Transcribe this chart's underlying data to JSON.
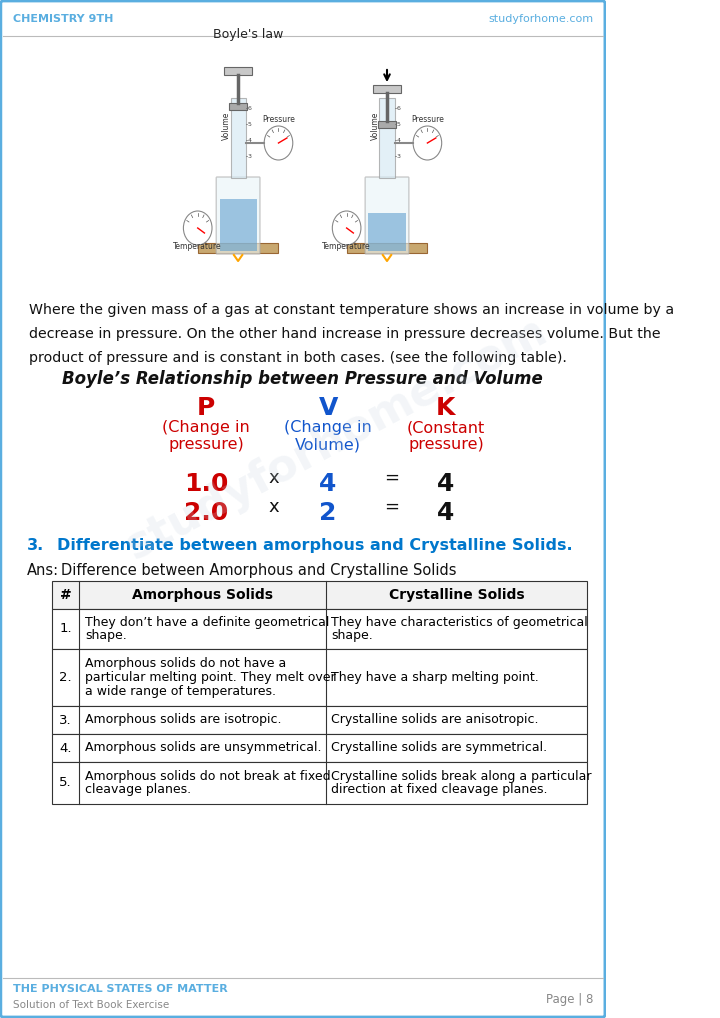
{
  "header_left": "CHEMISTRY 9TH",
  "header_right": "studyforhome.com",
  "header_color": "#5aaee0",
  "footer_left_title": "THE PHYSICAL STATES OF MATTER",
  "footer_left_sub": "Solution of Text Book Exercise",
  "footer_right": "Page | 8",
  "footer_color": "#5aaee0",
  "body_line1": "Where the given mass of a gas at constant temperature shows an increase in volume by a",
  "body_line2": "decrease in pressure. On the other hand increase in pressure decreases volume. But the",
  "body_line3": "product of pressure and is constant in both cases. (see the following table).",
  "boyles_title": "Boyle’s Relationship between Pressure and Volume",
  "col_P": "P",
  "col_V": "V",
  "col_K": "K",
  "col_P_sub1": "(Change in",
  "col_P_sub2": "pressure)",
  "col_V_sub1": "(Change in",
  "col_V_sub2": "Volume)",
  "col_K_sub1": "(Constant",
  "col_K_sub2": "pressure)",
  "row1": [
    "1.0",
    "x",
    "4",
    "=",
    "4"
  ],
  "row2": [
    "2.0",
    "x",
    "2",
    "=",
    "4"
  ],
  "red_color": "#cc0000",
  "blue_color": "#1155cc",
  "black_color": "#111111",
  "question_color": "#0077cc",
  "question_num": "3.",
  "question_text": "Differentiate between amorphous and Crystalline Solids.",
  "ans_label": "Ans:",
  "ans_text": "Difference between Amorphous and Crystalline Solids",
  "table_headers": [
    "#",
    "Amorphous Solids",
    "Crystalline Solids"
  ],
  "table_rows": [
    [
      "1.",
      "They don’t have a definite geometrical\nshape.",
      "They have characteristics of geometrical\nshape."
    ],
    [
      "2.",
      "Amorphous solids do not have a\nparticular melting point. They melt over\na wide range of temperatures.",
      "They have a sharp melting point."
    ],
    [
      "3.",
      "Amorphous solids are isotropic.",
      "Crystalline solids are anisotropic."
    ],
    [
      "4.",
      "Amorphous solids are unsymmetrical.",
      "Crystalline solids are symmetrical."
    ],
    [
      "5.",
      "Amorphous solids do not break at fixed\ncleavage planes.",
      "Crystalline solids break along a particular\ndirection at fixed cleavage planes."
    ]
  ],
  "border_color": "#5aaee0",
  "page_bg": "#ffffff",
  "boyles_law_label": "Boyle's law"
}
